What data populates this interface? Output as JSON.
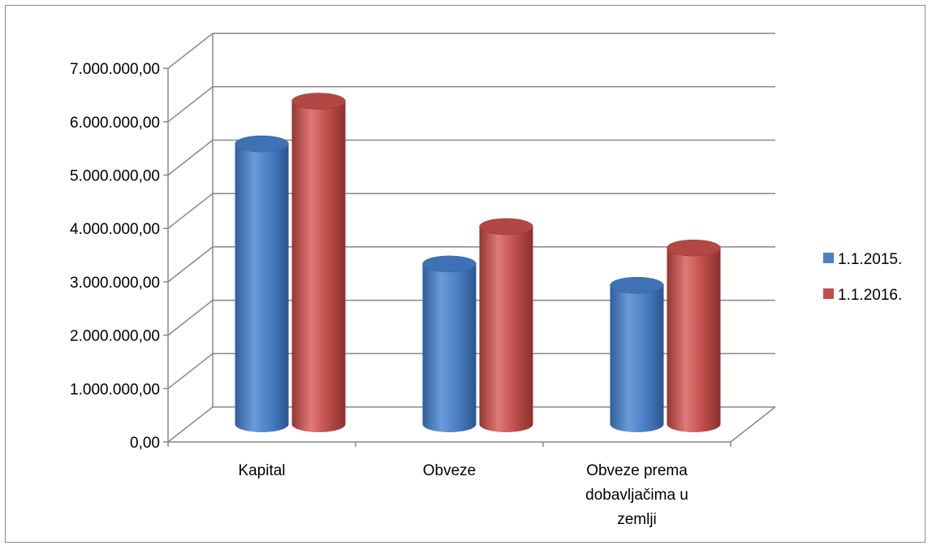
{
  "chart_data": {
    "type": "bar",
    "categories": [
      [
        "Kapital"
      ],
      [
        "Obveze"
      ],
      [
        "Obveze prema",
        "dobavljačima u",
        "zemlji"
      ]
    ],
    "series": [
      {
        "name": "1.1.2015.",
        "values": [
          5250000,
          3000000,
          2600000
        ],
        "color": "#4a7fc4"
      },
      {
        "name": "1.1.2016.",
        "values": [
          6050000,
          3700000,
          3300000
        ],
        "color": "#c0504d"
      }
    ],
    "ylim": [
      0,
      7000000
    ],
    "yticks": [
      0,
      1000000,
      2000000,
      3000000,
      4000000,
      5000000,
      6000000,
      7000000
    ],
    "ytick_labels": [
      "0,00",
      "1.000.000,00",
      "2.000.000,00",
      "3.000.000,00",
      "4.000.000,00",
      "5.000.000,00",
      "6.000.000,00",
      "7.000.000,00"
    ],
    "grid": true,
    "style": "3d-cylinder",
    "legend_position": "right"
  }
}
